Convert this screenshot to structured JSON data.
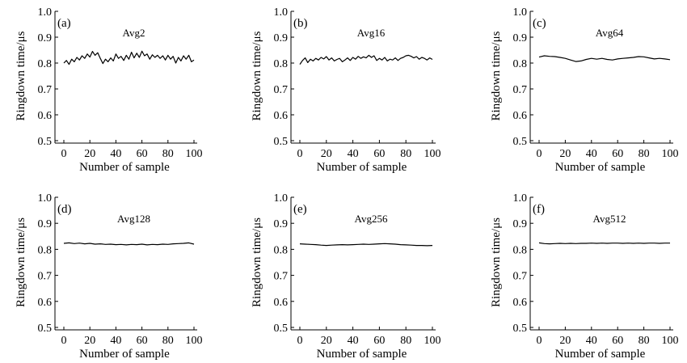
{
  "figure": {
    "background": "#ffffff",
    "line_color": "#000000"
  },
  "chart_data": [
    {
      "type": "line",
      "panel": "(a)",
      "annotation": "Avg2",
      "xlabel": "Number of sample",
      "ylabel": "Ringdown time/μs",
      "xlim": [
        0,
        100
      ],
      "ylim": [
        0.5,
        1.0
      ],
      "xticks": [
        "0",
        "20",
        "40",
        "60",
        "80",
        "100"
      ],
      "yticks": [
        "0.5",
        "0.6",
        "0.7",
        "0.8",
        "0.9",
        "1.0"
      ],
      "series": [
        {
          "x": [
            0,
            2,
            4,
            6,
            8,
            10,
            12,
            14,
            16,
            18,
            20,
            22,
            24,
            26,
            28,
            30,
            32,
            34,
            36,
            38,
            40,
            42,
            44,
            46,
            48,
            50,
            52,
            54,
            56,
            58,
            60,
            62,
            64,
            66,
            68,
            70,
            72,
            74,
            76,
            78,
            80,
            82,
            84,
            86,
            88,
            90,
            92,
            94,
            96,
            98,
            100
          ],
          "values": [
            0.8,
            0.81,
            0.795,
            0.815,
            0.805,
            0.822,
            0.812,
            0.828,
            0.818,
            0.835,
            0.823,
            0.845,
            0.83,
            0.84,
            0.818,
            0.798,
            0.815,
            0.805,
            0.82,
            0.808,
            0.835,
            0.818,
            0.826,
            0.81,
            0.83,
            0.815,
            0.842,
            0.82,
            0.838,
            0.822,
            0.846,
            0.828,
            0.835,
            0.815,
            0.832,
            0.822,
            0.83,
            0.818,
            0.828,
            0.812,
            0.83,
            0.815,
            0.826,
            0.8,
            0.822,
            0.808,
            0.828,
            0.815,
            0.83,
            0.805,
            0.812
          ]
        }
      ]
    },
    {
      "type": "line",
      "panel": "(b)",
      "annotation": "Avg16",
      "xlabel": "Number of sample",
      "ylabel": "Ringdown time/μs",
      "xlim": [
        0,
        100
      ],
      "ylim": [
        0.5,
        1.0
      ],
      "xticks": [
        "0",
        "20",
        "40",
        "60",
        "80",
        "100"
      ],
      "yticks": [
        "0.5",
        "0.6",
        "0.7",
        "0.8",
        "0.9",
        "1.0"
      ],
      "series": [
        {
          "x": [
            0,
            2,
            4,
            6,
            8,
            10,
            12,
            14,
            16,
            18,
            20,
            22,
            24,
            26,
            28,
            30,
            32,
            34,
            36,
            38,
            40,
            42,
            44,
            46,
            48,
            50,
            52,
            54,
            56,
            58,
            60,
            62,
            64,
            66,
            68,
            70,
            72,
            74,
            76,
            78,
            80,
            82,
            84,
            86,
            88,
            90,
            92,
            94,
            96,
            98,
            100
          ],
          "values": [
            0.795,
            0.81,
            0.82,
            0.802,
            0.815,
            0.808,
            0.818,
            0.812,
            0.822,
            0.816,
            0.825,
            0.812,
            0.82,
            0.808,
            0.814,
            0.818,
            0.805,
            0.812,
            0.82,
            0.81,
            0.822,
            0.815,
            0.826,
            0.818,
            0.824,
            0.82,
            0.83,
            0.822,
            0.828,
            0.81,
            0.818,
            0.812,
            0.822,
            0.808,
            0.815,
            0.812,
            0.82,
            0.81,
            0.818,
            0.822,
            0.828,
            0.83,
            0.826,
            0.82,
            0.825,
            0.815,
            0.822,
            0.818,
            0.812,
            0.82,
            0.814
          ]
        }
      ]
    },
    {
      "type": "line",
      "panel": "(c)",
      "annotation": "Avg64",
      "xlabel": "Number of sample",
      "ylabel": "Ringdown time/μs",
      "xlim": [
        0,
        100
      ],
      "ylim": [
        0.5,
        1.0
      ],
      "xticks": [
        "0",
        "20",
        "40",
        "60",
        "80",
        "100"
      ],
      "yticks": [
        "0.5",
        "0.6",
        "0.7",
        "0.8",
        "0.9",
        "1.0"
      ],
      "series": [
        {
          "x": [
            0,
            4,
            8,
            12,
            16,
            20,
            24,
            28,
            32,
            36,
            40,
            44,
            48,
            52,
            56,
            60,
            64,
            68,
            72,
            76,
            80,
            84,
            88,
            92,
            96,
            100
          ],
          "values": [
            0.823,
            0.828,
            0.826,
            0.825,
            0.822,
            0.818,
            0.812,
            0.806,
            0.808,
            0.814,
            0.818,
            0.815,
            0.818,
            0.814,
            0.812,
            0.816,
            0.818,
            0.82,
            0.822,
            0.825,
            0.824,
            0.82,
            0.816,
            0.818,
            0.816,
            0.813
          ]
        }
      ]
    },
    {
      "type": "line",
      "panel": "(d)",
      "annotation": "Avg128",
      "xlabel": "Number of sample",
      "ylabel": "Ringdown time/μs",
      "xlim": [
        0,
        100
      ],
      "ylim": [
        0.5,
        1.0
      ],
      "xticks": [
        "0",
        "20",
        "40",
        "60",
        "80",
        "100"
      ],
      "yticks": [
        "0.5",
        "0.6",
        "0.7",
        "0.8",
        "0.9",
        "1.0"
      ],
      "series": [
        {
          "x": [
            0,
            4,
            8,
            12,
            16,
            20,
            24,
            28,
            32,
            36,
            40,
            44,
            48,
            52,
            56,
            60,
            64,
            68,
            72,
            76,
            80,
            84,
            88,
            92,
            96,
            100
          ],
          "values": [
            0.823,
            0.825,
            0.822,
            0.824,
            0.821,
            0.823,
            0.82,
            0.821,
            0.819,
            0.82,
            0.818,
            0.819,
            0.817,
            0.819,
            0.818,
            0.82,
            0.817,
            0.819,
            0.818,
            0.82,
            0.819,
            0.821,
            0.822,
            0.823,
            0.825,
            0.82
          ]
        }
      ]
    },
    {
      "type": "line",
      "panel": "(e)",
      "annotation": "Avg256",
      "xlabel": "Number of sample",
      "ylabel": "Ringdown time/μs",
      "xlim": [
        0,
        100
      ],
      "ylim": [
        0.5,
        1.0
      ],
      "xticks": [
        "0",
        "20",
        "40",
        "60",
        "80",
        "100"
      ],
      "yticks": [
        "0.5",
        "0.6",
        "0.7",
        "0.8",
        "0.9",
        "1.0"
      ],
      "series": [
        {
          "x": [
            0,
            4,
            8,
            12,
            16,
            20,
            24,
            28,
            32,
            36,
            40,
            44,
            48,
            52,
            56,
            60,
            64,
            68,
            72,
            76,
            80,
            84,
            88,
            92,
            96,
            100
          ],
          "values": [
            0.821,
            0.82,
            0.819,
            0.818,
            0.816,
            0.815,
            0.816,
            0.817,
            0.818,
            0.817,
            0.818,
            0.819,
            0.82,
            0.819,
            0.82,
            0.821,
            0.822,
            0.821,
            0.82,
            0.818,
            0.817,
            0.816,
            0.815,
            0.815,
            0.814,
            0.815
          ]
        }
      ]
    },
    {
      "type": "line",
      "panel": "(f)",
      "annotation": "Avg512",
      "xlabel": "Number of sample",
      "ylabel": "Ringdown time/μs",
      "xlim": [
        0,
        100
      ],
      "ylim": [
        0.5,
        1.0
      ],
      "xticks": [
        "0",
        "20",
        "40",
        "60",
        "80",
        "100"
      ],
      "yticks": [
        "0.5",
        "0.6",
        "0.7",
        "0.8",
        "0.9",
        "1.0"
      ],
      "series": [
        {
          "x": [
            0,
            4,
            8,
            12,
            16,
            20,
            24,
            28,
            32,
            36,
            40,
            44,
            48,
            52,
            56,
            60,
            64,
            68,
            72,
            76,
            80,
            84,
            88,
            92,
            96,
            100
          ],
          "values": [
            0.825,
            0.822,
            0.821,
            0.822,
            0.823,
            0.822,
            0.823,
            0.822,
            0.823,
            0.823,
            0.824,
            0.823,
            0.824,
            0.823,
            0.824,
            0.824,
            0.823,
            0.824,
            0.823,
            0.824,
            0.823,
            0.824,
            0.824,
            0.823,
            0.824,
            0.824
          ]
        }
      ]
    }
  ]
}
